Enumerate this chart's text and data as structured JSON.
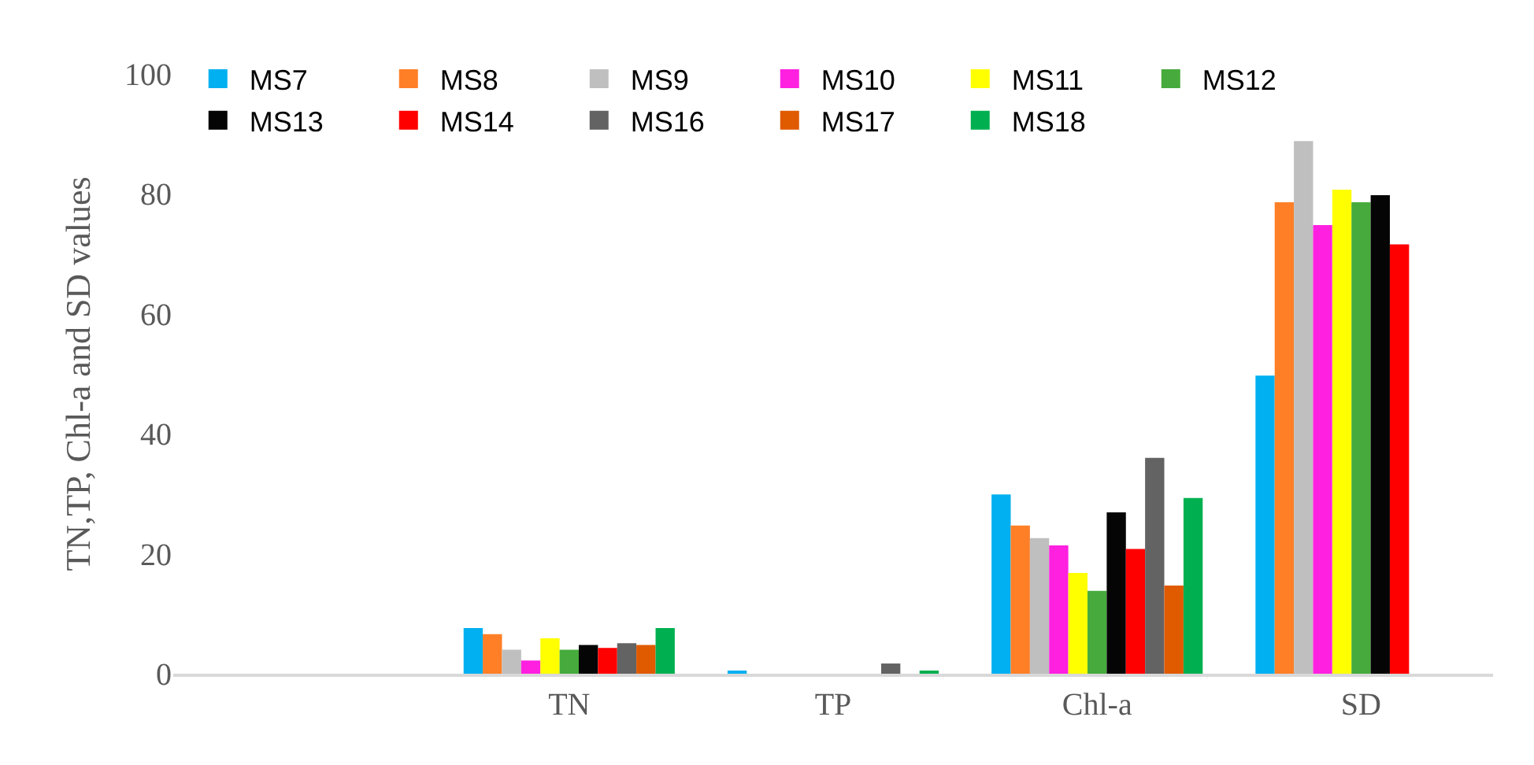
{
  "chart_data": {
    "type": "bar",
    "ylabel": "TN,TP, Chl-a and SD values",
    "categories": [
      null,
      "TN",
      "TP",
      "Chl-a",
      "SD"
    ],
    "series": [
      {
        "name": "MS7",
        "color": "#00b0f0",
        "values": [
          null,
          7.6,
          0.4,
          29.9,
          49.7
        ]
      },
      {
        "name": "MS8",
        "color": "#ff7f27",
        "values": [
          null,
          6.6,
          0,
          24.7,
          78.6
        ]
      },
      {
        "name": "MS9",
        "color": "#bfbfbf",
        "values": [
          null,
          4.0,
          0,
          22.6,
          88.8
        ]
      },
      {
        "name": "MS10",
        "color": "#ff20e0",
        "values": [
          null,
          2.2,
          0,
          21.4,
          74.8
        ]
      },
      {
        "name": "MS11",
        "color": "#ffff00",
        "values": [
          null,
          5.9,
          0,
          16.8,
          80.7
        ]
      },
      {
        "name": "MS12",
        "color": "#46ab3c",
        "values": [
          null,
          4.0,
          0,
          13.8,
          78.6
        ]
      },
      {
        "name": "MS13",
        "color": "#050505",
        "values": [
          null,
          4.8,
          0,
          26.9,
          79.8
        ]
      },
      {
        "name": "MS14",
        "color": "#ff0000",
        "values": [
          null,
          4.3,
          0,
          20.8,
          71.6
        ]
      },
      {
        "name": "MS16",
        "color": "#636363",
        "values": [
          null,
          5.1,
          1.7,
          36.0,
          null
        ]
      },
      {
        "name": "MS17",
        "color": "#e05a00",
        "values": [
          null,
          4.8,
          0,
          14.7,
          null
        ]
      },
      {
        "name": "MS18",
        "color": "#00b050",
        "values": [
          null,
          7.6,
          0.4,
          29.3,
          null
        ]
      }
    ],
    "ylim": [
      0,
      100
    ],
    "yticks": [
      0,
      20,
      40,
      60,
      80,
      100
    ],
    "grid": false,
    "legend": "top left"
  }
}
